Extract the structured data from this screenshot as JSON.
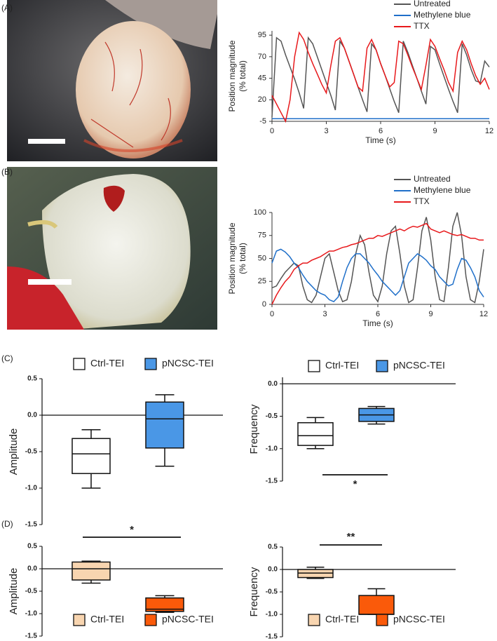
{
  "panel_labels": [
    "(A)",
    "(B)",
    "(C)",
    "(D)"
  ],
  "chart_data": [
    {
      "type": "line",
      "xlabel": "Time (s)",
      "ylabel": [
        "Position magnitude",
        "(% total)"
      ],
      "x": [
        0,
        0.25,
        0.5,
        0.75,
        1,
        1.25,
        1.5,
        1.75,
        2,
        2.25,
        2.5,
        2.75,
        3,
        3.25,
        3.5,
        3.75,
        4,
        4.25,
        4.5,
        4.75,
        5,
        5.25,
        5.5,
        5.75,
        6,
        6.25,
        6.5,
        6.75,
        7,
        7.25,
        7.5,
        7.75,
        8,
        8.25,
        8.5,
        8.75,
        9,
        9.25,
        9.5,
        9.75,
        10,
        10.25,
        10.5,
        10.75,
        11,
        11.25,
        11.5,
        11.75,
        12
      ],
      "xlim": [
        0,
        12
      ],
      "xticks": [
        0,
        3,
        6,
        9,
        12
      ],
      "ylim": [
        -5,
        100
      ],
      "yticks": [
        -5,
        20,
        45,
        70,
        95
      ],
      "series": [
        {
          "name": "Untreated",
          "color": "#555555",
          "values": [
            0,
            92,
            88,
            72,
            58,
            44,
            28,
            10,
            92,
            85,
            70,
            55,
            40,
            25,
            8,
            88,
            80,
            65,
            50,
            35,
            20,
            6,
            85,
            78,
            62,
            48,
            33,
            18,
            5,
            88,
            75,
            60,
            45,
            30,
            15,
            82,
            78,
            62,
            47,
            32,
            18,
            5,
            85,
            72,
            55,
            42,
            40,
            65,
            58
          ]
        },
        {
          "name": "Methylene blue",
          "color": "#1f6fc9",
          "values": [
            -2,
            -2,
            -2,
            -2,
            -2,
            -2,
            -2,
            -2,
            -2,
            -2,
            -2,
            -2,
            -2,
            -2,
            -2,
            -2,
            -2,
            -2,
            -2,
            -2,
            -2,
            -2,
            -2,
            -2,
            -2,
            -2,
            -2,
            -2,
            -2,
            -2,
            -2,
            -2,
            -2,
            -2,
            -2,
            -2,
            -2,
            -2,
            -2,
            -2,
            -2,
            -2,
            -2,
            -2,
            -2,
            -2,
            -2,
            -2,
            -2
          ]
        },
        {
          "name": "TTX",
          "color": "#e8191c",
          "values": [
            25,
            15,
            5,
            -5,
            20,
            70,
            98,
            90,
            75,
            62,
            50,
            38,
            28,
            60,
            88,
            92,
            80,
            65,
            50,
            35,
            30,
            80,
            90,
            78,
            62,
            48,
            35,
            40,
            88,
            85,
            72,
            58,
            45,
            32,
            60,
            90,
            82,
            68,
            55,
            40,
            30,
            75,
            88,
            78,
            62,
            48,
            38,
            45,
            32
          ]
        }
      ]
    },
    {
      "type": "line",
      "xlabel": "Time (s)",
      "ylabel": [
        "Position magnitude",
        "(% total)"
      ],
      "x": [
        0,
        0.25,
        0.5,
        0.75,
        1,
        1.25,
        1.5,
        1.75,
        2,
        2.25,
        2.5,
        2.75,
        3,
        3.25,
        3.5,
        3.75,
        4,
        4.25,
        4.5,
        4.75,
        5,
        5.25,
        5.5,
        5.75,
        6,
        6.25,
        6.5,
        6.75,
        7,
        7.25,
        7.5,
        7.75,
        8,
        8.25,
        8.5,
        8.75,
        9,
        9.25,
        9.5,
        9.75,
        10,
        10.25,
        10.5,
        10.75,
        11,
        11.25,
        11.5,
        11.75,
        12
      ],
      "xlim": [
        0,
        12
      ],
      "xticks": [
        0,
        3,
        6,
        9,
        12
      ],
      "ylim": [
        0,
        100
      ],
      "yticks": [
        0,
        25,
        50,
        75,
        100
      ],
      "series": [
        {
          "name": "Untreated",
          "color": "#555555",
          "values": [
            18,
            20,
            28,
            35,
            40,
            45,
            42,
            20,
            5,
            2,
            10,
            30,
            50,
            55,
            35,
            15,
            3,
            5,
            25,
            55,
            75,
            65,
            35,
            10,
            3,
            20,
            55,
            80,
            85,
            55,
            20,
            2,
            5,
            40,
            80,
            95,
            70,
            30,
            5,
            3,
            40,
            85,
            100,
            75,
            30,
            5,
            2,
            25,
            60
          ]
        },
        {
          "name": "Methylene blue",
          "color": "#1f6fc9",
          "values": [
            45,
            58,
            60,
            57,
            52,
            45,
            40,
            32,
            25,
            20,
            15,
            12,
            10,
            5,
            3,
            8,
            25,
            40,
            50,
            55,
            55,
            50,
            45,
            38,
            32,
            25,
            20,
            15,
            10,
            15,
            30,
            45,
            50,
            55,
            52,
            48,
            42,
            38,
            30,
            25,
            20,
            22,
            38,
            50,
            48,
            40,
            30,
            15,
            8
          ]
        },
        {
          "name": "TTX",
          "color": "#e8191c",
          "values": [
            0,
            10,
            18,
            25,
            30,
            38,
            42,
            45,
            45,
            48,
            50,
            52,
            55,
            58,
            58,
            60,
            62,
            63,
            65,
            66,
            68,
            70,
            72,
            72,
            75,
            74,
            76,
            78,
            80,
            82,
            80,
            83,
            85,
            84,
            86,
            88,
            82,
            80,
            78,
            80,
            78,
            76,
            75,
            76,
            74,
            72,
            72,
            70,
            70
          ]
        }
      ]
    },
    {
      "type": "box",
      "ylabel": "Amplitude",
      "ylim": [
        -1.5,
        0.5
      ],
      "yticks": [
        0.5,
        {
          "value": 0,
          "label": "0.0"
        },
        -0.5,
        {
          "value": -1,
          "label": "-1.0"
        },
        -1.5
      ],
      "legend": "top",
      "series": [
        {
          "name": "Ctrl-TEI",
          "color": "#ffffff",
          "min": -1.0,
          "q1": -0.8,
          "median": -0.53,
          "q3": -0.32,
          "max": -0.2
        },
        {
          "name": "pNCSC-TEI",
          "color": "#4a97e6",
          "min": -0.7,
          "q1": -0.45,
          "median": -0.05,
          "q3": 0.18,
          "max": 0.28
        }
      ]
    },
    {
      "type": "box",
      "ylabel": "Frequency",
      "ylim": [
        -1.5,
        0.1
      ],
      "yticks": [
        {
          "value": 0,
          "label": "0.0"
        },
        -0.5,
        {
          "value": -1,
          "label": "-1.0"
        },
        -1.5
      ],
      "legend": "top",
      "annotation": "*",
      "series": [
        {
          "name": "Ctrl-TEI",
          "color": "#ffffff",
          "min": -1.0,
          "q1": -0.95,
          "median": -0.8,
          "q3": -0.6,
          "max": -0.52
        },
        {
          "name": "pNCSC-TEI",
          "color": "#4a97e6",
          "min": -0.62,
          "q1": -0.58,
          "median": -0.48,
          "q3": -0.38,
          "max": -0.35
        }
      ]
    },
    {
      "type": "box",
      "ylabel": "Amplitude",
      "ylim": [
        -1.5,
        0.5
      ],
      "yticks": [
        0.5,
        {
          "value": 0,
          "label": "0.0"
        },
        -0.5,
        {
          "value": -1,
          "label": "-1.0"
        },
        -1.5
      ],
      "legend": "bottom",
      "annotation": "*",
      "series": [
        {
          "name": "Ctrl-TEI",
          "color": "#f8d5b0",
          "min": -0.32,
          "q1": -0.25,
          "median": 0.0,
          "q3": 0.15,
          "max": 0.17
        },
        {
          "name": "pNCSC-TEI",
          "color": "#fa5a0a",
          "min": -0.97,
          "q1": -0.95,
          "median": -0.9,
          "q3": -0.65,
          "max": -0.6
        }
      ]
    },
    {
      "type": "box",
      "ylabel": "Frequency",
      "ylim": [
        -1.5,
        0.5
      ],
      "yticks": [
        0.5,
        {
          "value": 0,
          "label": "0.0"
        },
        -0.5,
        {
          "value": -1,
          "label": "-1.0"
        },
        -1.5
      ],
      "legend": "bottom",
      "annotation": "**",
      "series": [
        {
          "name": "Ctrl-TEI",
          "color": "#f8d5b0",
          "min": -0.2,
          "q1": -0.18,
          "median": -0.08,
          "q3": 0.0,
          "max": 0.05
        },
        {
          "name": "pNCSC-TEI",
          "color": "#fa5a0a",
          "min": -1.0,
          "q1": -1.0,
          "median": -1.0,
          "q3": -0.58,
          "max": -0.43
        }
      ]
    }
  ]
}
